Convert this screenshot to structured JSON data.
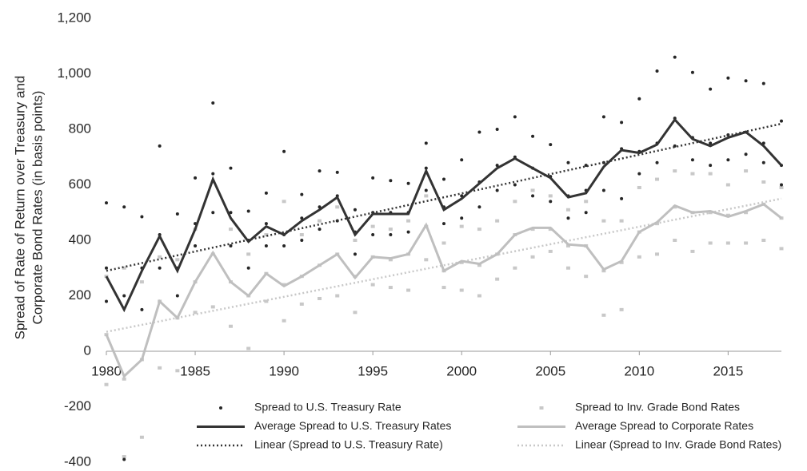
{
  "chart_data": {
    "type": "combo",
    "y_label": [
      "Spread of Rate of Return over Treasury and",
      "Corporate Bond Rates (in basis points)"
    ],
    "xlim": [
      1980,
      2018
    ],
    "xticks": [
      1980,
      1985,
      1990,
      1995,
      2000,
      2005,
      2010,
      2015
    ],
    "ylim": [
      -400,
      1200
    ],
    "yticks": [
      {
        "value": 1200,
        "label": "1,200"
      },
      {
        "value": 1000,
        "label": "1,000"
      },
      800,
      600,
      400,
      200,
      0,
      -200,
      -400
    ],
    "legend": "bottom",
    "series": [
      {
        "name": "Spread to U.S. Treasury Rate",
        "kind": "scatter",
        "marker": "circle",
        "color": "#262626",
        "x": [
          1980,
          1980,
          1980,
          1981,
          1981,
          1981,
          1982,
          1982,
          1982,
          1983,
          1983,
          1983,
          1984,
          1984,
          1984,
          1985,
          1985,
          1985,
          1986,
          1986,
          1986,
          1987,
          1987,
          1987,
          1988,
          1988,
          1988,
          1989,
          1989,
          1989,
          1990,
          1990,
          1990,
          1991,
          1991,
          1991,
          1992,
          1992,
          1992,
          1993,
          1993,
          1993,
          1994,
          1994,
          1994,
          1995,
          1995,
          1995,
          1996,
          1996,
          1996,
          1997,
          1997,
          1997,
          1998,
          1998,
          1998,
          1999,
          1999,
          1999,
          2000,
          2000,
          2000,
          2001,
          2001,
          2001,
          2002,
          2002,
          2002,
          2003,
          2003,
          2003,
          2004,
          2004,
          2004,
          2005,
          2005,
          2005,
          2006,
          2006,
          2006,
          2007,
          2007,
          2007,
          2008,
          2008,
          2008,
          2009,
          2009,
          2009,
          2010,
          2010,
          2010,
          2011,
          2011,
          2011,
          2012,
          2012,
          2012,
          2013,
          2013,
          2013,
          2014,
          2014,
          2014,
          2015,
          2015,
          2015,
          2016,
          2016,
          2016,
          2017,
          2017,
          2017,
          2018,
          2018,
          2018
        ],
        "values": [
          180,
          300,
          535,
          -390,
          200,
          520,
          150,
          300,
          485,
          300,
          420,
          740,
          200,
          300,
          495,
          380,
          460,
          625,
          500,
          640,
          895,
          380,
          500,
          660,
          300,
          400,
          505,
          380,
          460,
          570,
          380,
          420,
          720,
          400,
          480,
          565,
          440,
          520,
          650,
          470,
          560,
          645,
          350,
          430,
          510,
          420,
          500,
          625,
          420,
          500,
          615,
          430,
          500,
          605,
          580,
          660,
          750,
          460,
          520,
          620,
          480,
          560,
          690,
          520,
          610,
          790,
          580,
          670,
          800,
          600,
          700,
          845,
          560,
          660,
          775,
          540,
          630,
          745,
          480,
          560,
          680,
          500,
          580,
          670,
          580,
          680,
          845,
          550,
          730,
          825,
          640,
          720,
          910,
          680,
          750,
          1010,
          740,
          840,
          1060,
          690,
          770,
          1005,
          670,
          750,
          945,
          690,
          780,
          985,
          710,
          790,
          975,
          680,
          750,
          965,
          600,
          670,
          830
        ]
      },
      {
        "name": "Spread to Inv. Grade Bond Rates",
        "kind": "scatter",
        "marker": "square",
        "color": "#c8c8c8",
        "x": [
          1980,
          1980,
          1980,
          1981,
          1981,
          1981,
          1982,
          1982,
          1982,
          1983,
          1983,
          1983,
          1984,
          1984,
          1984,
          1985,
          1985,
          1985,
          1986,
          1986,
          1986,
          1987,
          1987,
          1987,
          1988,
          1988,
          1988,
          1989,
          1989,
          1989,
          1990,
          1990,
          1990,
          1991,
          1991,
          1991,
          1992,
          1992,
          1992,
          1993,
          1993,
          1993,
          1994,
          1994,
          1994,
          1995,
          1995,
          1995,
          1996,
          1996,
          1996,
          1997,
          1997,
          1997,
          1998,
          1998,
          1998,
          1999,
          1999,
          1999,
          2000,
          2000,
          2000,
          2001,
          2001,
          2001,
          2002,
          2002,
          2002,
          2003,
          2003,
          2003,
          2004,
          2004,
          2004,
          2005,
          2005,
          2005,
          2006,
          2006,
          2006,
          2007,
          2007,
          2007,
          2008,
          2008,
          2008,
          2009,
          2009,
          2009,
          2010,
          2010,
          2010,
          2011,
          2011,
          2011,
          2012,
          2012,
          2012,
          2013,
          2013,
          2013,
          2014,
          2014,
          2014,
          2015,
          2015,
          2015,
          2016,
          2016,
          2016,
          2017,
          2017,
          2017,
          2018,
          2018,
          2018
        ],
        "values": [
          -120,
          60,
          270,
          -380,
          -100,
          300,
          -310,
          -30,
          250,
          -60,
          180,
          340,
          -70,
          120,
          330,
          140,
          250,
          440,
          160,
          350,
          610,
          90,
          250,
          440,
          10,
          200,
          350,
          180,
          280,
          420,
          110,
          240,
          540,
          170,
          270,
          420,
          190,
          310,
          470,
          200,
          350,
          520,
          140,
          270,
          400,
          240,
          340,
          450,
          230,
          330,
          440,
          220,
          350,
          470,
          330,
          450,
          560,
          230,
          290,
          390,
          220,
          320,
          450,
          200,
          310,
          440,
          260,
          350,
          470,
          300,
          420,
          540,
          340,
          440,
          580,
          360,
          440,
          560,
          300,
          380,
          510,
          270,
          380,
          540,
          130,
          290,
          470,
          150,
          320,
          470,
          340,
          430,
          590,
          350,
          460,
          620,
          400,
          520,
          650,
          360,
          500,
          640,
          390,
          500,
          640,
          390,
          490,
          600,
          390,
          500,
          650,
          400,
          530,
          610,
          370,
          480,
          590
        ]
      },
      {
        "name": "Average Spread to U.S. Treasury Rates",
        "kind": "line",
        "dashed": false,
        "color": "#333333",
        "x": [
          1980,
          1981,
          1982,
          1983,
          1984,
          1985,
          1986,
          1987,
          1988,
          1989,
          1990,
          1991,
          1992,
          1993,
          1994,
          1995,
          1996,
          1997,
          1998,
          1999,
          2000,
          2001,
          2002,
          2003,
          2004,
          2005,
          2006,
          2007,
          2008,
          2009,
          2010,
          2011,
          2012,
          2013,
          2014,
          2015,
          2016,
          2017,
          2018
        ],
        "values": [
          270,
          150,
          290,
          415,
          290,
          440,
          620,
          480,
          395,
          450,
          420,
          470,
          510,
          555,
          420,
          495,
          495,
          495,
          650,
          510,
          550,
          605,
          660,
          695,
          660,
          625,
          555,
          570,
          665,
          725,
          715,
          745,
          835,
          765,
          740,
          770,
          790,
          740,
          670
        ]
      },
      {
        "name": "Average Spread to Corporate Rates",
        "kind": "line",
        "dashed": false,
        "color": "#bfbfbf",
        "x": [
          1980,
          1981,
          1982,
          1983,
          1984,
          1985,
          1986,
          1987,
          1988,
          1989,
          1990,
          1991,
          1992,
          1993,
          1994,
          1995,
          1996,
          1997,
          1998,
          1999,
          2000,
          2001,
          2002,
          2003,
          2004,
          2005,
          2006,
          2007,
          2008,
          2009,
          2010,
          2011,
          2012,
          2013,
          2014,
          2015,
          2016,
          2017,
          2018
        ],
        "values": [
          60,
          -90,
          -30,
          180,
          120,
          250,
          355,
          250,
          200,
          280,
          235,
          270,
          310,
          350,
          265,
          340,
          335,
          350,
          455,
          290,
          325,
          315,
          350,
          420,
          445,
          445,
          385,
          380,
          295,
          325,
          430,
          465,
          525,
          500,
          505,
          485,
          505,
          530,
          480
        ]
      },
      {
        "name": "Linear (Spread to U.S. Treasury Rate)",
        "kind": "line",
        "dashed": true,
        "color": "#333333",
        "x": [
          1980,
          2018
        ],
        "values": [
          290,
          820
        ]
      },
      {
        "name": "Linear (Spread to Inv. Grade Bond Rates)",
        "kind": "line",
        "dashed": true,
        "color": "#c8c8c8",
        "x": [
          1980,
          2018
        ],
        "values": [
          70,
          550
        ]
      }
    ]
  }
}
